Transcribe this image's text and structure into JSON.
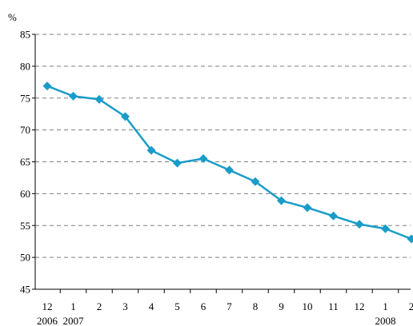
{
  "chart_data": {
    "type": "line",
    "y_unit": "%",
    "ylim": [
      45,
      85
    ],
    "yticks": [
      45,
      50,
      55,
      60,
      65,
      70,
      75,
      80,
      85
    ],
    "grid": true,
    "categories": [
      "12",
      "1",
      "2",
      "3",
      "4",
      "5",
      "6",
      "7",
      "8",
      "9",
      "10",
      "11",
      "12",
      "1",
      "2"
    ],
    "year_labels": [
      {
        "index": 0,
        "label": "2006"
      },
      {
        "index": 1,
        "label": "2007"
      },
      {
        "index": 13,
        "label": "2008"
      }
    ],
    "series": [
      {
        "color": "#1a9cc9",
        "marker": "diamond",
        "values": [
          76.9,
          75.3,
          74.8,
          72.1,
          66.8,
          64.8,
          65.5,
          63.7,
          61.9,
          58.9,
          57.8,
          56.5,
          55.2,
          54.5,
          52.9
        ]
      }
    ]
  }
}
